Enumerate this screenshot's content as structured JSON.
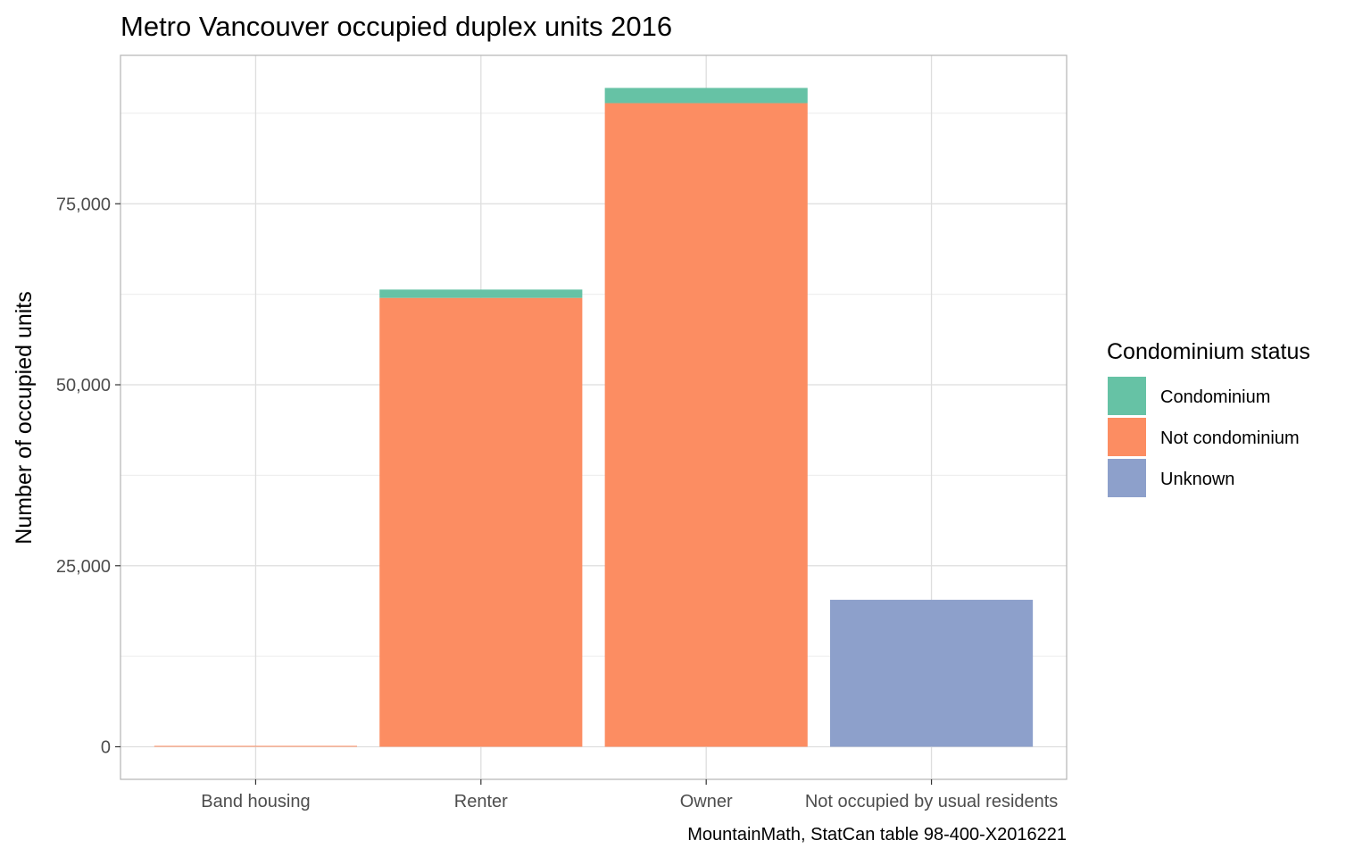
{
  "chart_data": {
    "type": "bar",
    "stacked": true,
    "title": "Metro Vancouver occupied duplex units 2016",
    "xlabel": "",
    "ylabel": "Number of occupied units",
    "caption": "MountainMath, StatCan table 98-400-X2016221",
    "categories": [
      "Band housing",
      "Renter",
      "Owner",
      "Not occupied by usual residents"
    ],
    "series": [
      {
        "name": "Not condominium",
        "color": "#FC8D62",
        "values": [
          15,
          62000,
          88900,
          0
        ]
      },
      {
        "name": "Condominium",
        "color": "#66C2A5",
        "values": [
          0,
          1150,
          2100,
          0
        ]
      },
      {
        "name": "Unknown",
        "color": "#8DA0CB",
        "values": [
          0,
          0,
          0,
          20300
        ]
      }
    ],
    "stack_order": [
      "Not condominium",
      "Condominium",
      "Unknown"
    ],
    "ylim": [
      -4500,
      95500
    ],
    "y_ticks": [
      0,
      25000,
      50000,
      75000
    ],
    "y_tick_labels": [
      "0",
      "25,000",
      "50,000",
      "75,000"
    ],
    "grid": true,
    "legend": {
      "title": "Condominium status",
      "position": "right",
      "items": [
        {
          "label": "Condominium",
          "color": "#66C2A5"
        },
        {
          "label": "Not condominium",
          "color": "#FC8D62"
        },
        {
          "label": "Unknown",
          "color": "#8DA0CB"
        }
      ]
    }
  }
}
